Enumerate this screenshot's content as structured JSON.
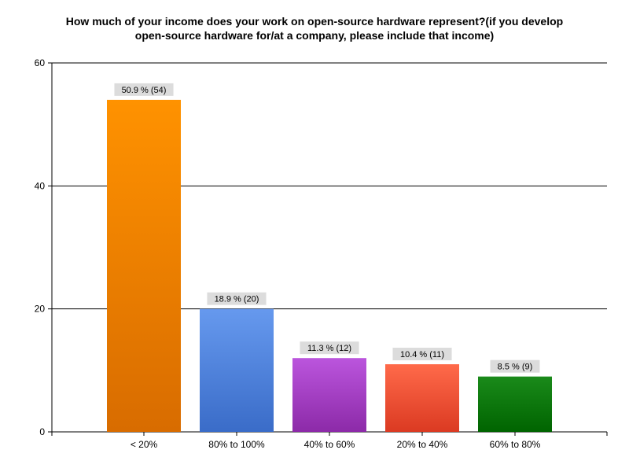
{
  "chart_data": {
    "type": "bar",
    "title_lines": [
      "How much of your income does your work on open-source hardware represent?(if you develop",
      "open-source hardware for/at a company, please include that income)"
    ],
    "categories": [
      "< 20%",
      "80% to 100%",
      "40% to 60%",
      "20% to 40%",
      "60% to 80%"
    ],
    "values": [
      54,
      20,
      12,
      11,
      9
    ],
    "data_labels": [
      "50.9 % (54)",
      "18.9 % (20)",
      "11.3 % (12)",
      "10.4 % (11)",
      "8.5 % (9)"
    ],
    "ylim": [
      0,
      60
    ],
    "yticks": [
      "0",
      "20",
      "40",
      "60"
    ],
    "grid": true,
    "legend": "none",
    "colors": [
      {
        "top": "#ff9200",
        "bottom": "#d86c00"
      },
      {
        "top": "#6699ee",
        "bottom": "#3a6cc8"
      },
      {
        "top": "#bb55dd",
        "bottom": "#8c2aa8"
      },
      {
        "top": "#ff6a4a",
        "bottom": "#db3a22"
      },
      {
        "top": "#1a8a1a",
        "bottom": "#006400"
      }
    ]
  }
}
